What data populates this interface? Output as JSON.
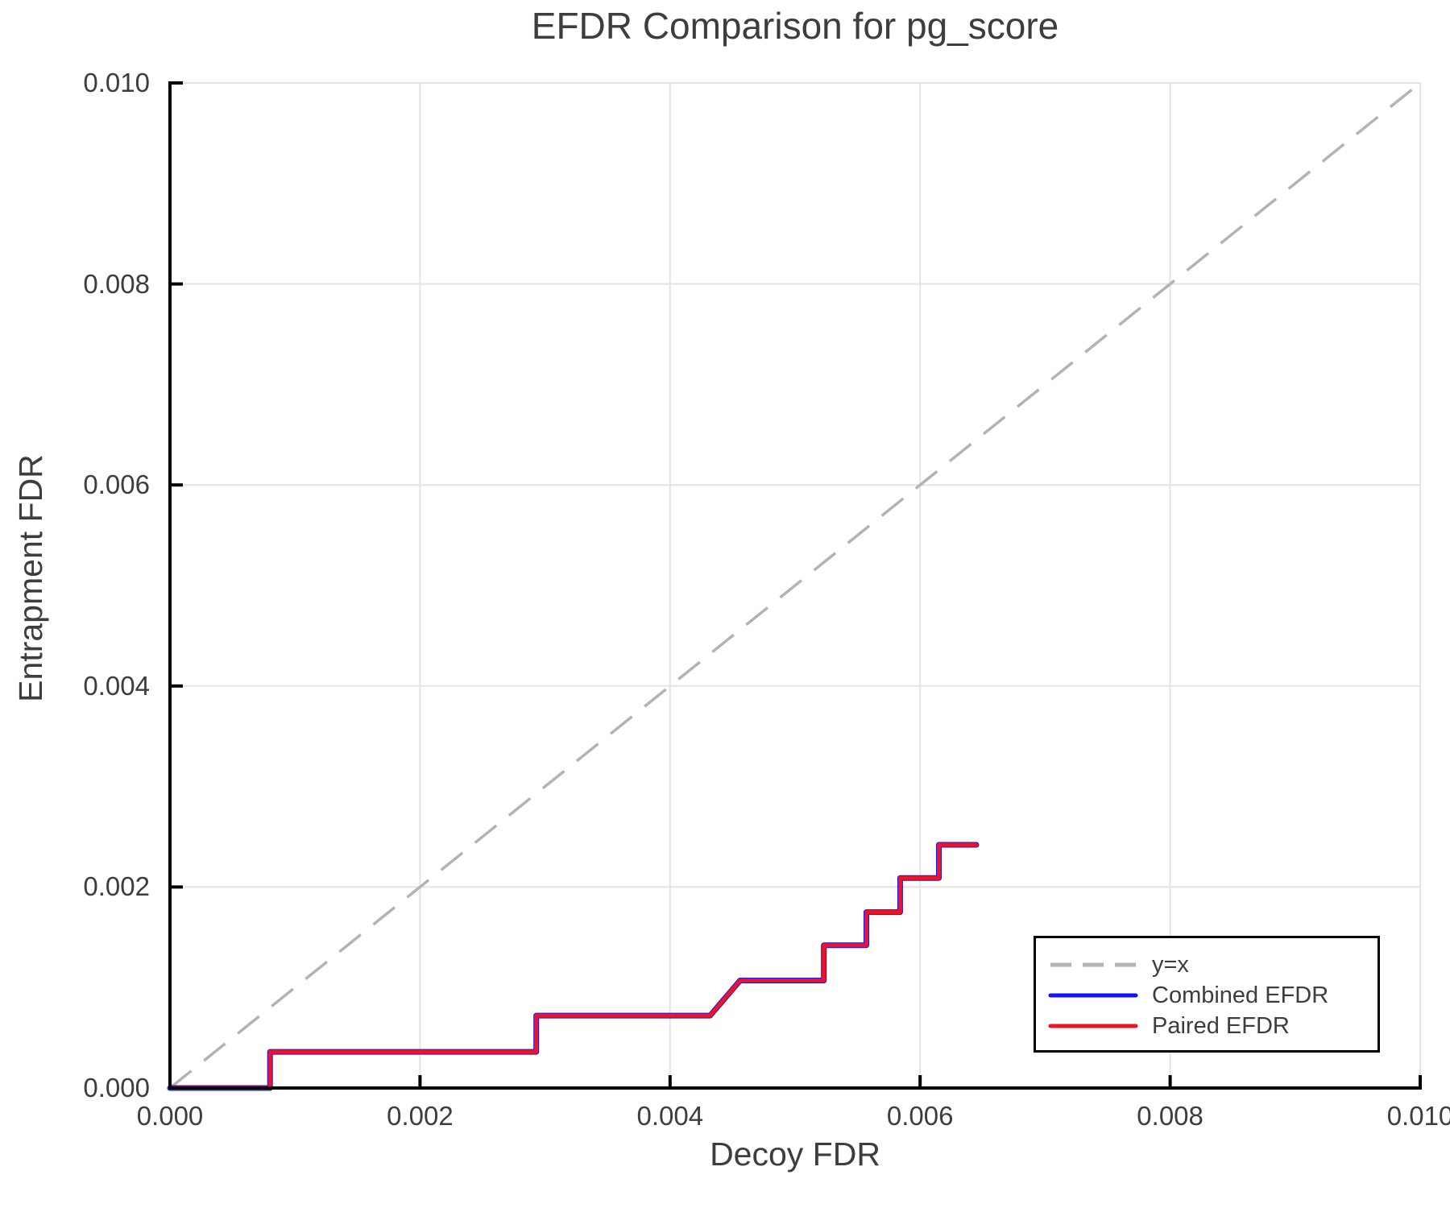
{
  "title": "EFDR Comparison for pg_score",
  "axes": {
    "xlabel": "Decoy FDR",
    "ylabel": "Entrapment FDR",
    "x_tick_labels": [
      "0.000",
      "0.002",
      "0.004",
      "0.006",
      "0.008",
      "0.010"
    ],
    "y_tick_labels": [
      "0.000",
      "0.002",
      "0.004",
      "0.006",
      "0.008",
      "0.010"
    ]
  },
  "legend": {
    "items": [
      {
        "label": "y=x",
        "color": "#b3b3b3",
        "style": "dashed"
      },
      {
        "label": "Combined EFDR",
        "color": "#1414f0",
        "style": "solid"
      },
      {
        "label": "Paired EFDR",
        "color": "#ef1324",
        "style": "solid"
      }
    ]
  },
  "chart_data": {
    "type": "line",
    "title": "EFDR Comparison for pg_score",
    "xlabel": "Decoy FDR",
    "ylabel": "Entrapment FDR",
    "xlim": [
      0.0,
      0.01
    ],
    "ylim": [
      0.0,
      0.01
    ],
    "xticks": [
      0.0,
      0.002,
      0.004,
      0.006,
      0.008,
      0.01
    ],
    "yticks": [
      0.0,
      0.002,
      0.004,
      0.006,
      0.008,
      0.01
    ],
    "grid": true,
    "legend_position": "lower right",
    "combined_overlaps_paired": true,
    "series": [
      {
        "name": "y=x",
        "color": "#b3b3b3",
        "style": "dashed",
        "lw": 3.5,
        "points": [
          [
            0.0,
            0.0
          ],
          [
            0.01,
            0.01
          ]
        ]
      },
      {
        "name": "Combined EFDR",
        "color": "#1414f0",
        "style": "solid",
        "lw": 7,
        "points": [
          [
            0.0,
            0.0
          ],
          [
            0.0008,
            0.0
          ],
          [
            0.0008,
            0.00036
          ],
          [
            0.00293,
            0.00036
          ],
          [
            0.00293,
            0.00072
          ],
          [
            0.00432,
            0.00072
          ],
          [
            0.00456,
            0.00107
          ],
          [
            0.00523,
            0.00107
          ],
          [
            0.00523,
            0.00142
          ],
          [
            0.00557,
            0.00142
          ],
          [
            0.00557,
            0.00175
          ],
          [
            0.00584,
            0.00175
          ],
          [
            0.00584,
            0.00209
          ],
          [
            0.00615,
            0.00209
          ],
          [
            0.00615,
            0.00242
          ],
          [
            0.00645,
            0.00242
          ]
        ]
      },
      {
        "name": "Paired EFDR",
        "color": "#ef1324",
        "style": "solid",
        "lw": 5,
        "points": [
          [
            0.0,
            0.0
          ],
          [
            0.0008,
            0.0
          ],
          [
            0.0008,
            0.00036
          ],
          [
            0.00293,
            0.00036
          ],
          [
            0.00293,
            0.00072
          ],
          [
            0.00432,
            0.00072
          ],
          [
            0.00456,
            0.00107
          ],
          [
            0.00523,
            0.00107
          ],
          [
            0.00523,
            0.00142
          ],
          [
            0.00557,
            0.00142
          ],
          [
            0.00557,
            0.00175
          ],
          [
            0.00584,
            0.00175
          ],
          [
            0.00584,
            0.00209
          ],
          [
            0.00615,
            0.00209
          ],
          [
            0.00615,
            0.00242
          ],
          [
            0.00645,
            0.00242
          ]
        ]
      }
    ]
  },
  "style": {
    "spine_color": "#000000",
    "grid_color": "#e4e4e4",
    "text_color": "#3d3d3d",
    "background": "#ffffff"
  }
}
